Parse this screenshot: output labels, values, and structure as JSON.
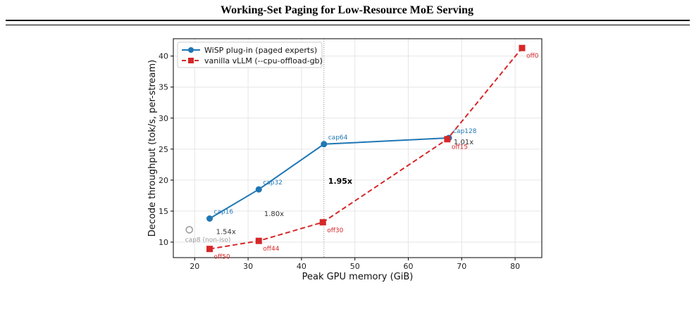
{
  "page": {
    "title": "Working-Set Paging for Low-Resource MoE Serving"
  },
  "chart_data": {
    "type": "line",
    "xlabel": "Peak GPU memory (GiB)",
    "ylabel": "Decode throughput (tok/s, per-stream)",
    "xlim": [
      16,
      85
    ],
    "ylim": [
      7.5,
      42.8
    ],
    "xticks": [
      20,
      30,
      40,
      50,
      60,
      70,
      80
    ],
    "yticks": [
      10,
      15,
      20,
      25,
      30,
      35,
      40
    ],
    "grid": true,
    "legend_position": "top-left",
    "reference_line_x": 44.2,
    "series": [
      {
        "name": "WiSP plug-in (paged experts)",
        "color": "#1f77b4",
        "marker": "circle",
        "line": "solid",
        "points": [
          {
            "x": 22.8,
            "y": 13.8,
            "label": "cap16"
          },
          {
            "x": 32.0,
            "y": 18.5,
            "label": "cap32"
          },
          {
            "x": 44.2,
            "y": 25.8,
            "label": "cap64"
          },
          {
            "x": 67.6,
            "y": 26.8,
            "label": "cap128"
          }
        ]
      },
      {
        "name": "vanilla vLLM (--cpu-offload-gb)",
        "color": "#d62728",
        "marker": "square",
        "line": "dashed",
        "points": [
          {
            "x": 22.8,
            "y": 8.9,
            "label": "off50"
          },
          {
            "x": 32.0,
            "y": 10.2,
            "label": "off44"
          },
          {
            "x": 44.0,
            "y": 13.2,
            "label": "off30"
          },
          {
            "x": 67.3,
            "y": 26.6,
            "label": "off15"
          },
          {
            "x": 81.3,
            "y": 41.3,
            "label": "off0"
          }
        ]
      }
    ],
    "extra_points": [
      {
        "x": 19.0,
        "y": 12.0,
        "label": "cap8 (non-iso)",
        "color": "#999999",
        "marker": "open-circle"
      }
    ],
    "annotations": [
      {
        "text": "1.54x",
        "x": 24.0,
        "y": 11.3,
        "bold": false
      },
      {
        "text": "1.80x",
        "x": 33.0,
        "y": 14.2,
        "bold": false
      },
      {
        "text": "1.95x",
        "x": 45.0,
        "y": 19.4,
        "bold": true
      },
      {
        "text": "1.01x",
        "x": 68.5,
        "y": 25.8,
        "bold": false
      }
    ]
  }
}
